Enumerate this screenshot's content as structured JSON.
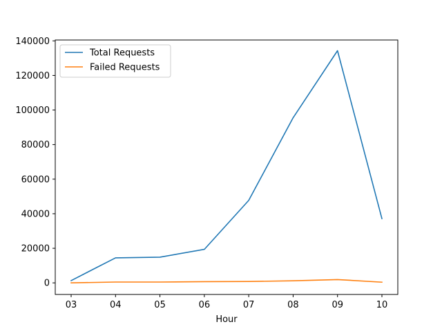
{
  "chart_data": {
    "type": "line",
    "title": "",
    "xlabel": "Hour",
    "ylabel": "",
    "categories": [
      "03",
      "04",
      "05",
      "06",
      "07",
      "08",
      "09",
      "10"
    ],
    "ylim": [
      -6700,
      140500
    ],
    "yticks": [
      0,
      20000,
      40000,
      60000,
      80000,
      100000,
      120000,
      140000
    ],
    "legend_position": "top-left",
    "grid": false,
    "series": [
      {
        "name": "Total Requests",
        "color": "#1f77b4",
        "values": [
          1300,
          14500,
          14900,
          19400,
          47700,
          95500,
          134300,
          37200
        ]
      },
      {
        "name": "Failed Requests",
        "color": "#ff7f0e",
        "values": [
          0,
          500,
          500,
          700,
          800,
          1200,
          1900,
          400
        ]
      }
    ]
  }
}
